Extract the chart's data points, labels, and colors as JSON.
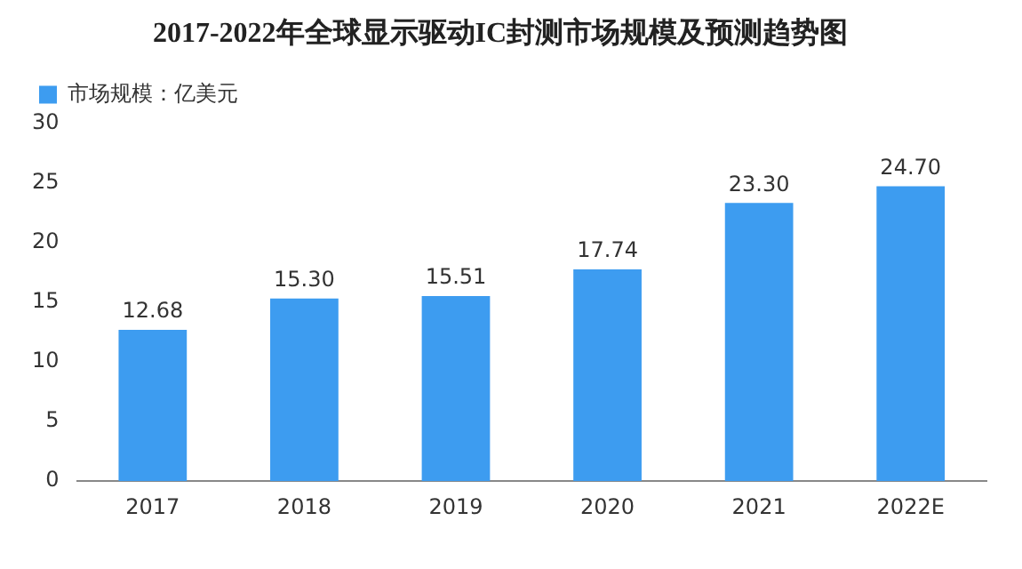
{
  "chart_data": {
    "type": "bar",
    "title": "2017-2022年全球显示驱动IC封测市场规模及预测趋势图",
    "categories": [
      "2017",
      "2018",
      "2019",
      "2020",
      "2021",
      "2022E"
    ],
    "series": [
      {
        "name": "市场规模：亿美元",
        "color": "#3d9cf0",
        "values": [
          12.68,
          15.3,
          15.51,
          17.74,
          23.3,
          24.7
        ]
      }
    ],
    "value_labels": [
      "12.68",
      "15.30",
      "15.51",
      "17.74",
      "23.30",
      "24.70"
    ],
    "ylim": [
      0,
      30
    ],
    "yticks": [
      0,
      5,
      10,
      15,
      20,
      25,
      30
    ],
    "grid": false,
    "legend": "top"
  }
}
